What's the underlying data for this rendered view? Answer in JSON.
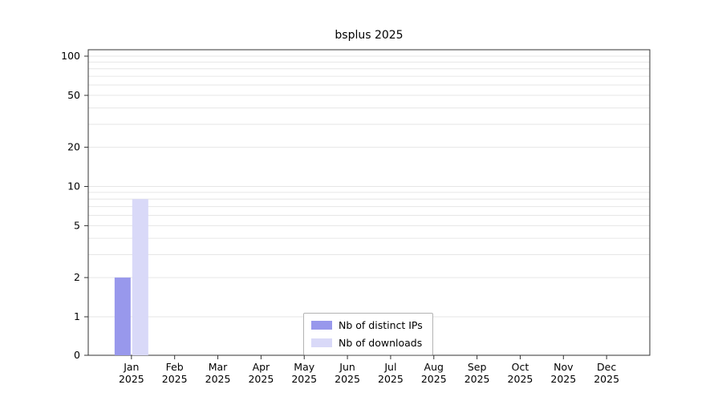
{
  "chart_data": {
    "type": "bar",
    "title": "bsplus 2025",
    "categories": [
      "Jan 2025",
      "Feb 2025",
      "Mar 2025",
      "Apr 2025",
      "May 2025",
      "Jun 2025",
      "Jul 2025",
      "Aug 2025",
      "Sep 2025",
      "Oct 2025",
      "Nov 2025",
      "Dec 2025"
    ],
    "series": [
      {
        "name": "Nb of distinct IPs",
        "color": "#9898ec",
        "values": [
          2,
          0,
          0,
          0,
          0,
          0,
          0,
          0,
          0,
          0,
          0,
          0
        ]
      },
      {
        "name": "Nb of downloads",
        "color": "#d9d9f8",
        "values": [
          8,
          0,
          0,
          0,
          0,
          0,
          0,
          0,
          0,
          0,
          0,
          0
        ]
      }
    ],
    "yticks": [
      0,
      1,
      2,
      5,
      10,
      20,
      50,
      100
    ],
    "yscale": "log",
    "ylim": [
      0,
      130
    ],
    "grid": "horizontal-minor-log",
    "legend_position": "bottom-center",
    "colors": {
      "grid": "#e6e6e6",
      "frame": "#333333",
      "text": "#000000"
    }
  }
}
